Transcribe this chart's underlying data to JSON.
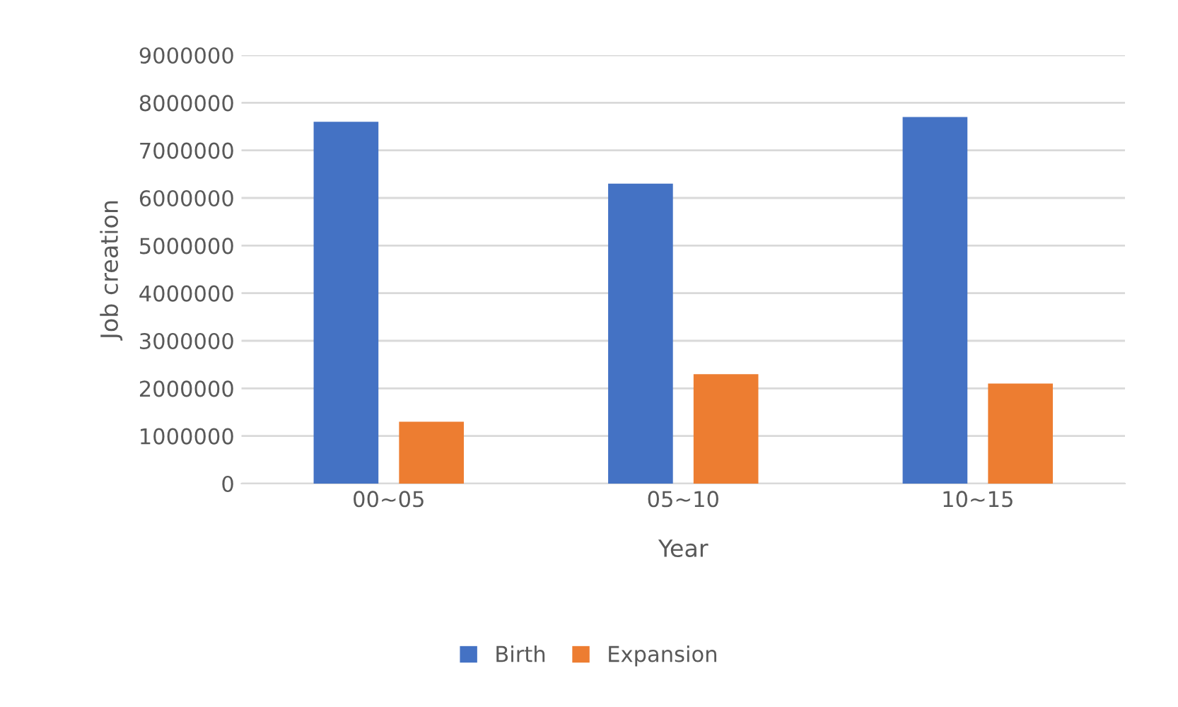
{
  "chart_data": {
    "type": "bar",
    "xlabel": "Year",
    "ylabel": "Job creation",
    "categories": [
      "00~05",
      "05~10",
      "10~15"
    ],
    "series": [
      {
        "name": "Birth",
        "color": "#4472c4",
        "values": [
          7600000,
          6300000,
          7700000
        ]
      },
      {
        "name": "Expansion",
        "color": "#ed7d31",
        "values": [
          1300000,
          2300000,
          2100000
        ]
      }
    ],
    "ylim": [
      0,
      9000000
    ],
    "yticks": [
      0,
      1000000,
      2000000,
      3000000,
      4000000,
      5000000,
      6000000,
      7000000,
      8000000,
      9000000
    ],
    "grid": "y",
    "legend": "bottom"
  }
}
